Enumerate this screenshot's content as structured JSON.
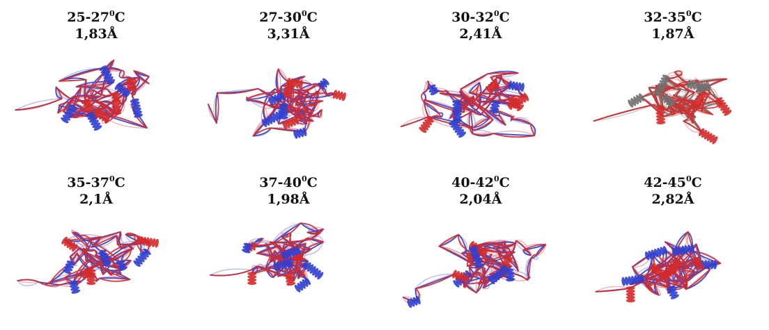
{
  "panels": [
    {
      "range": "25-27",
      "degree": "0",
      "unit": "C",
      "rmsd": "1,83Å",
      "colors": [
        "#2f3fd0",
        "#d42a2a"
      ]
    },
    {
      "range": "27-30",
      "degree": "0",
      "unit": "C",
      "rmsd": "3,31Å",
      "colors": [
        "#2f3fd0",
        "#d42a2a"
      ]
    },
    {
      "range": "30-32",
      "degree": "0",
      "unit": "C",
      "rmsd": "2,41Å",
      "colors": [
        "#2f3fd0",
        "#d42a2a"
      ]
    },
    {
      "range": "32-35",
      "degree": "0",
      "unit": "C",
      "rmsd": "1,87Å",
      "colors": [
        "#707070",
        "#d42a2a"
      ]
    },
    {
      "range": "35-37",
      "degree": "0",
      "unit": "C",
      "rmsd": "2,1Å",
      "colors": [
        "#2f3fd0",
        "#d42a2a"
      ]
    },
    {
      "range": "37-40",
      "degree": "0",
      "unit": "C",
      "rmsd": "1,98Å",
      "colors": [
        "#2f3fd0",
        "#d42a2a"
      ]
    },
    {
      "range": "40-42",
      "degree": "0",
      "unit": "C",
      "rmsd": "2,04Å",
      "colors": [
        "#2f3fd0",
        "#d42a2a"
      ]
    },
    {
      "range": "42-45",
      "degree": "0",
      "unit": "C",
      "rmsd": "2,82Å",
      "colors": [
        "#2f3fd0",
        "#d42a2a"
      ]
    }
  ]
}
